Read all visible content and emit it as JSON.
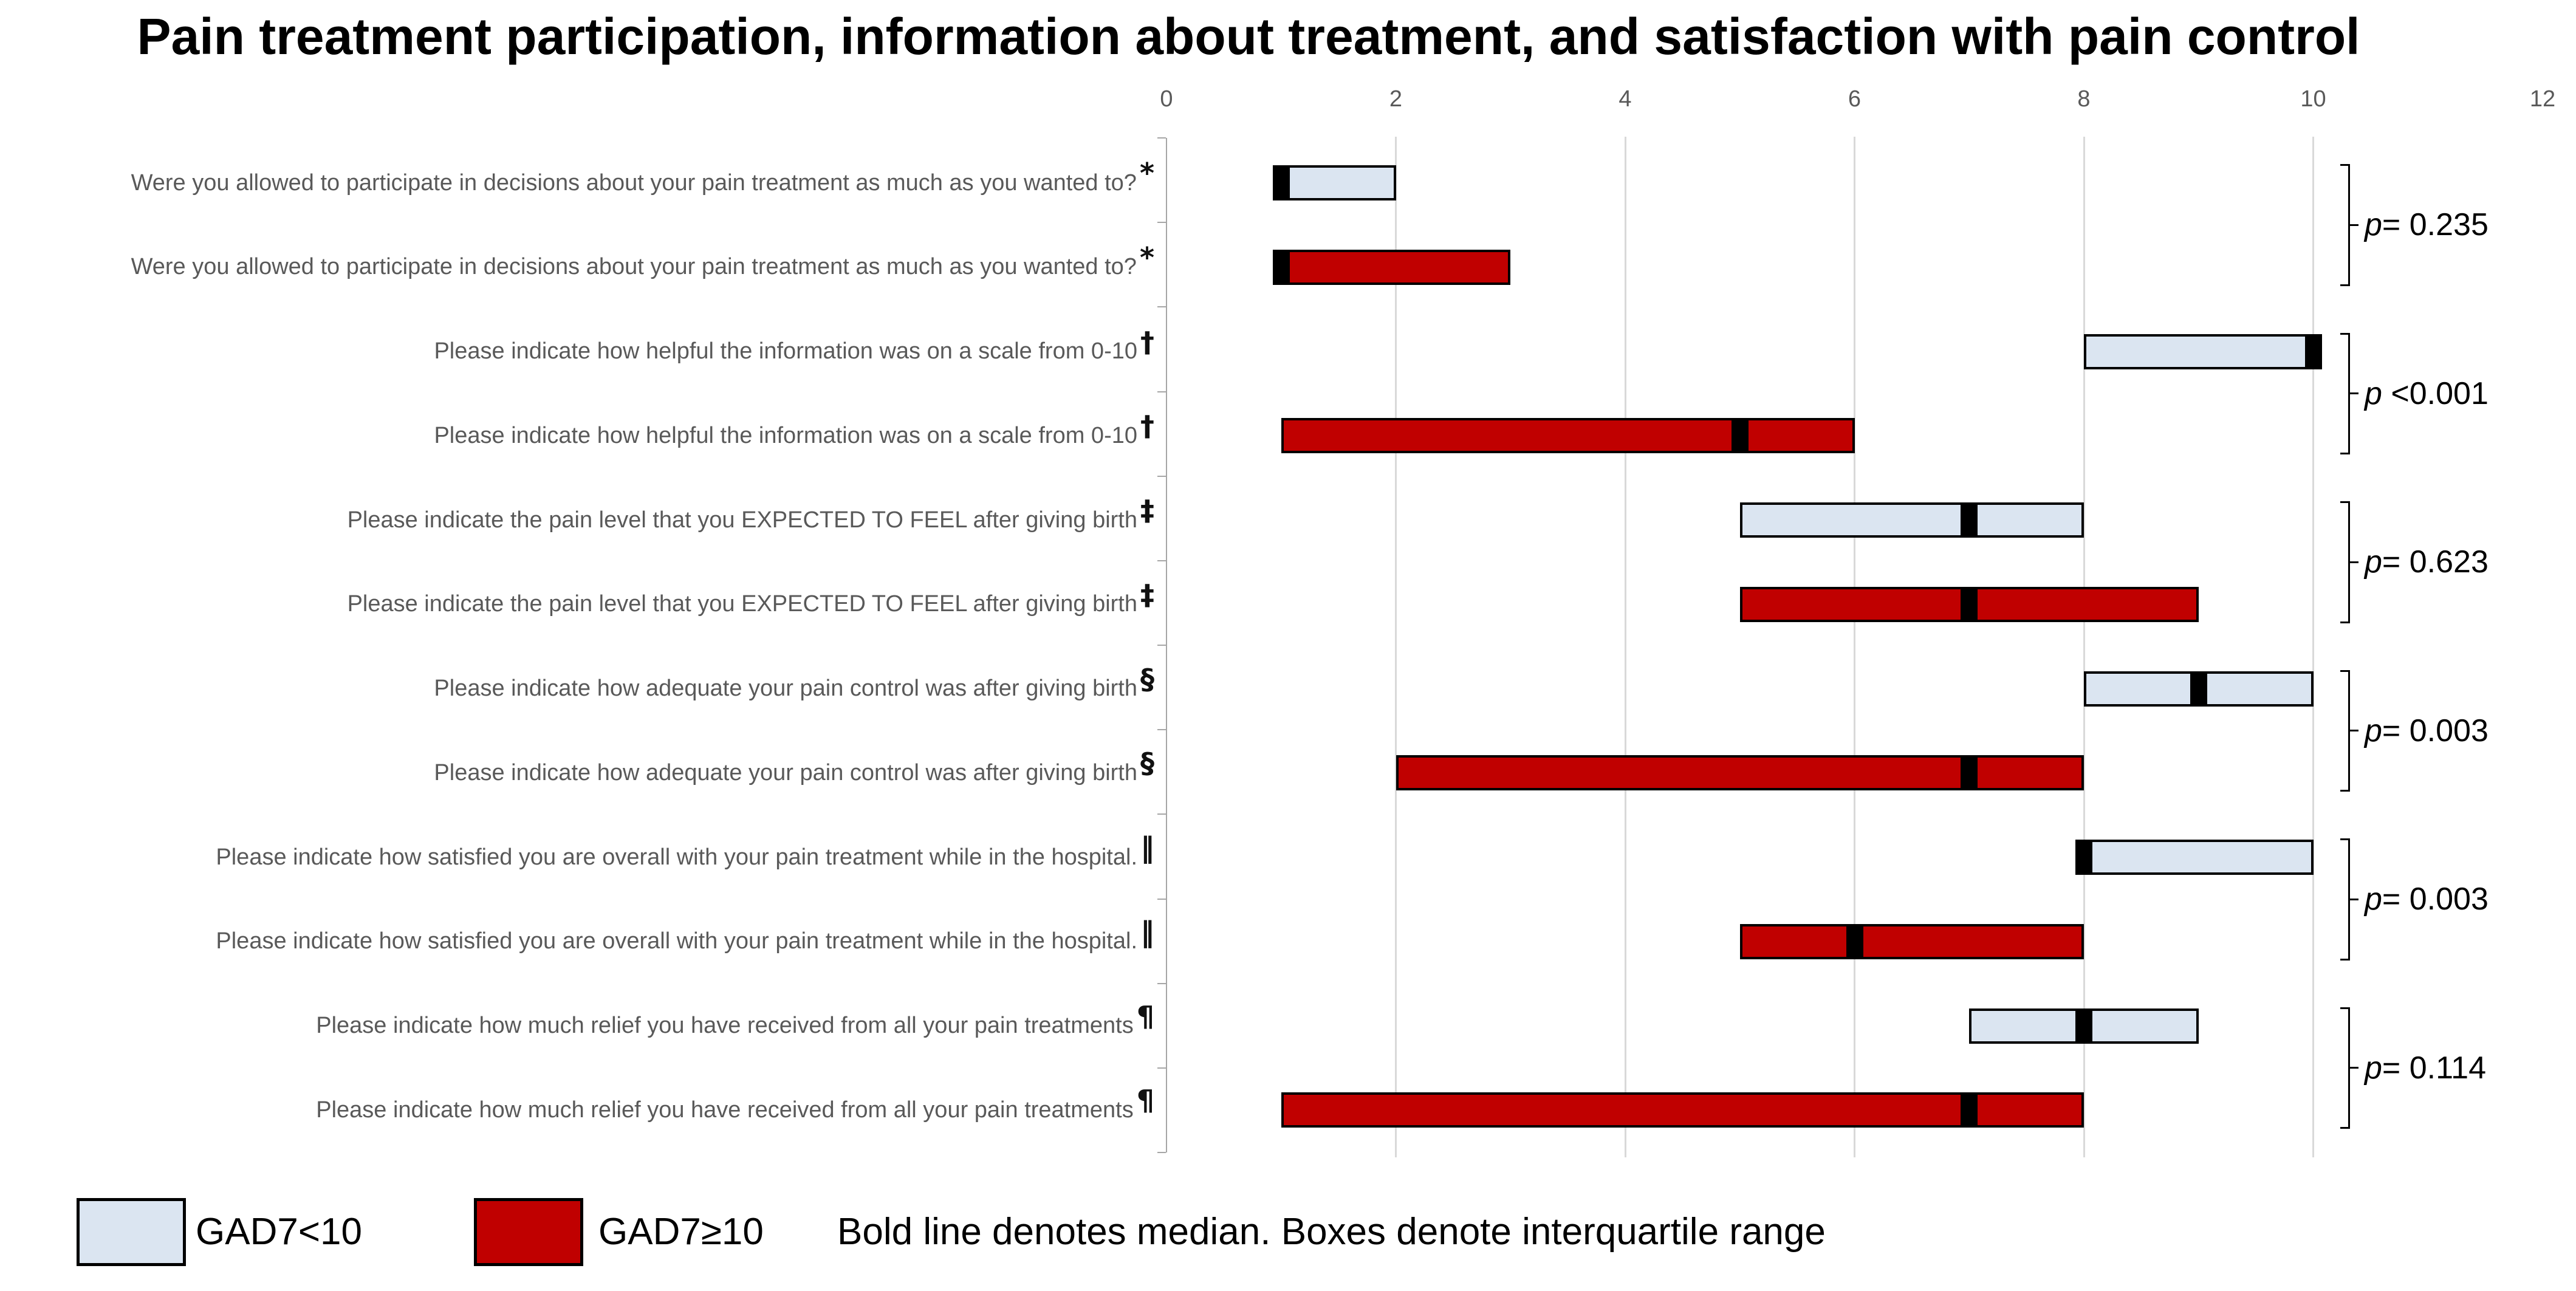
{
  "title": "Pain treatment participation, information about treatment, and satisfaction with pain control",
  "legend": {
    "series": [
      {
        "label": "GAD7<10",
        "color": "#dbe5f1"
      },
      {
        "label": "GAD7≥10",
        "color": "#c00000"
      }
    ],
    "note": "Bold line denotes median. Boxes denote interquartile range"
  },
  "chart_data": {
    "type": "boxplot",
    "orientation": "horizontal",
    "title": "Pain treatment participation, information about treatment, and satisfaction with pain control",
    "x_axis": {
      "min": 0,
      "max": 12,
      "ticks": [
        0,
        2,
        4,
        6,
        8,
        10,
        12
      ],
      "gridlines": [
        2,
        4,
        6,
        8,
        10
      ]
    },
    "median_color": "#000000",
    "box_border_color": "#000000",
    "p_italic": "p",
    "groups": [
      {
        "question": "Were you allowed to participate in decisions about your pain treatment as much as you wanted to?",
        "footnote": "*",
        "p_label": "p= 0.235",
        "p_rest": "= 0.235",
        "series": [
          {
            "name": "GAD7<10",
            "q1": 1,
            "median": 1,
            "q3": 2
          },
          {
            "name": "GAD7≥10",
            "q1": 1,
            "median": 1,
            "q3": 3
          }
        ]
      },
      {
        "question": "Please indicate how helpful the information was on a scale from 0-10",
        "footnote": "†",
        "p_label": "p <0.001",
        "p_rest": " <0.001",
        "series": [
          {
            "name": "GAD7<10",
            "q1": 8,
            "median": 10,
            "q3": 10
          },
          {
            "name": "GAD7≥10",
            "q1": 1,
            "median": 5,
            "q3": 6
          }
        ]
      },
      {
        "question": "Please indicate the pain level that you EXPECTED TO FEEL after giving birth",
        "footnote": "‡",
        "p_label": "p= 0.623",
        "p_rest": "= 0.623",
        "series": [
          {
            "name": "GAD7<10",
            "q1": 5,
            "median": 7,
            "q3": 8
          },
          {
            "name": "GAD7≥10",
            "q1": 5,
            "median": 7,
            "q3": 9
          }
        ]
      },
      {
        "question": "Please indicate how adequate your pain control was after giving birth",
        "footnote": "§",
        "p_label": "p= 0.003",
        "p_rest": "= 0.003",
        "series": [
          {
            "name": "GAD7<10",
            "q1": 8,
            "median": 9,
            "q3": 10
          },
          {
            "name": "GAD7≥10",
            "q1": 2,
            "median": 7,
            "q3": 8
          }
        ]
      },
      {
        "question": "Please indicate how satisfied you are overall with your pain treatment while in the hospital.",
        "footnote": "‖",
        "p_label": "p= 0.003",
        "p_rest": "= 0.003",
        "series": [
          {
            "name": "GAD7<10",
            "q1": 8,
            "median": 8,
            "q3": 10
          },
          {
            "name": "GAD7≥10",
            "q1": 5,
            "median": 6,
            "q3": 8
          }
        ]
      },
      {
        "question": "Please indicate how much relief you have received from all your pain treatments",
        "footnote": "¶",
        "p_label": "p= 0.114",
        "p_rest": "= 0.114",
        "series": [
          {
            "name": "GAD7<10",
            "q1": 7,
            "median": 8,
            "q3": 9
          },
          {
            "name": "GAD7≥10",
            "q1": 1,
            "median": 7,
            "q3": 8
          }
        ]
      }
    ],
    "note": "Bold line denotes median. Boxes denote interquartile range"
  }
}
